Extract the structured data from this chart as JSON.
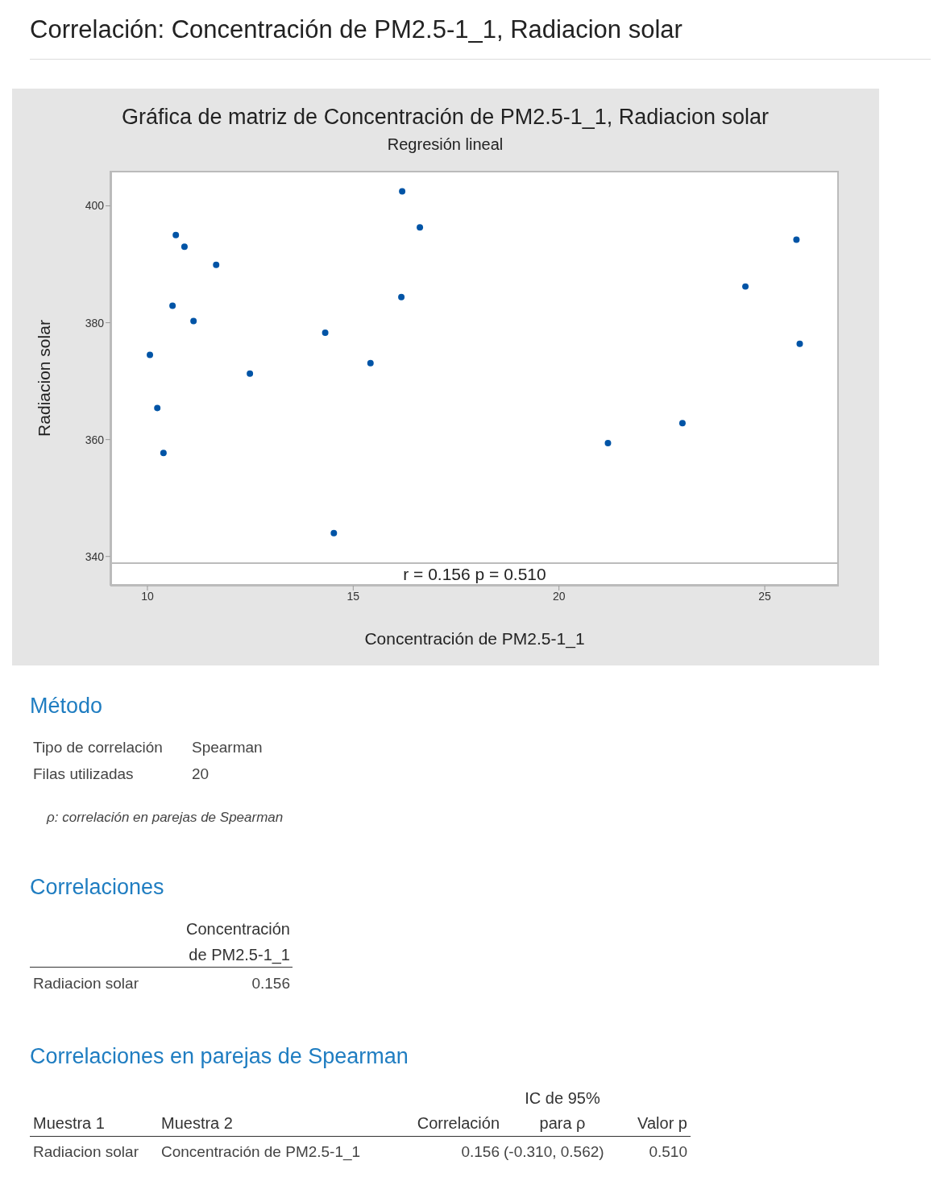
{
  "chart_data": {
    "type": "scatter",
    "title": "Gráfica de matriz de Concentración de PM2.5-1_1, Radiacion solar",
    "subtitle": "Regresión lineal",
    "xlabel": "Concentración de PM2.5-1_1",
    "ylabel": "Radiacion solar",
    "x": [
      10.06,
      10.24,
      10.39,
      10.61,
      10.69,
      10.9,
      11.12,
      11.67,
      12.49,
      14.32,
      14.53,
      15.42,
      16.17,
      16.19,
      16.62,
      21.19,
      23.0,
      24.53,
      25.77,
      25.85
    ],
    "series": [
      {
        "color": "#0054a6",
        "values": [
          374.5,
          365.4,
          357.7,
          382.9,
          395.0,
          393.0,
          380.3,
          389.9,
          371.3,
          378.3,
          344.0,
          373.1,
          384.4,
          402.5,
          396.3,
          359.4,
          362.8,
          386.2,
          394.2,
          376.4
        ]
      }
    ],
    "xlim": [
      9.1,
      26.8
    ],
    "xticks": [
      10,
      15,
      20,
      25
    ],
    "ylim": [
      335,
      406
    ],
    "yticks": [
      340,
      360,
      380,
      400
    ],
    "marker": "circle",
    "annotations": [
      "Correlación: Concentración de PM2.5-1_1, Radiacion solar",
      "r = 0.156  p = 0.510",
      "Método",
      "Tipo de correlación",
      "Spearman",
      "Filas utilizadas",
      "20",
      "ρ: correlación en parejas de Spearman",
      "Correlaciones",
      "Concentración",
      "de PM2.5-1_1",
      "Radiacion solar",
      "0.156",
      "Correlaciones en parejas de Spearman",
      "Muestra 1",
      "Muestra 2",
      "Correlación",
      "IC de 95%",
      "para ρ",
      "Valor p",
      "Radiacion solar",
      "Concentración de PM2.5-1_1",
      "0.156",
      "(-0.310, 0.562)",
      "0.510"
    ]
  }
}
